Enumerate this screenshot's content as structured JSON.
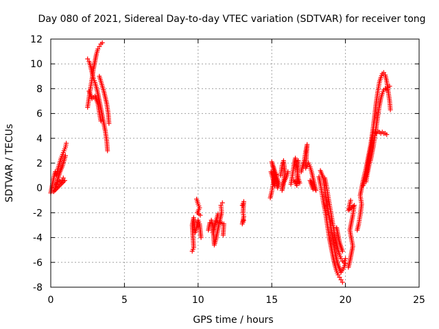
{
  "chart_data": {
    "type": "scatter",
    "title": "Day 080 of 2021, Sidereal Day-to-day VTEC variation (SDTVAR) for receiver tong",
    "xlabel": "GPS time / hours",
    "ylabel": "SDTVAR / TECUs",
    "xlim": [
      0,
      25
    ],
    "ylim": [
      -8,
      12
    ],
    "xticks": [
      "0",
      "5",
      "10",
      "15",
      "20",
      "25"
    ],
    "yticks": [
      "-8",
      "-6",
      "-4",
      "-2",
      "0",
      "2",
      "4",
      "6",
      "8",
      "10",
      "12"
    ],
    "grid": true,
    "marker": "plus",
    "color": "#ff0000",
    "series": [
      {
        "name": "SDTVAR",
        "segments": [
          [
            [
              0.0,
              -0.4
            ],
            [
              0.1,
              0.2
            ],
            [
              0.2,
              0.8
            ],
            [
              0.3,
              1.3
            ],
            [
              0.4,
              1.0
            ],
            [
              0.5,
              1.6
            ],
            [
              0.6,
              2.0
            ],
            [
              0.7,
              2.4
            ],
            [
              0.8,
              2.7
            ],
            [
              0.9,
              3.0
            ],
            [
              1.0,
              3.3
            ],
            [
              1.05,
              3.6
            ],
            [
              0.4,
              0.3
            ],
            [
              0.5,
              0.6
            ],
            [
              0.7,
              0.5
            ],
            [
              0.85,
              0.8
            ],
            [
              0.95,
              0.6
            ],
            [
              0.2,
              -0.3
            ],
            [
              0.3,
              0.0
            ],
            [
              0.6,
              1.2
            ],
            [
              0.8,
              1.8
            ],
            [
              1.0,
              2.6
            ]
          ],
          [
            [
              2.5,
              6.5
            ],
            [
              2.6,
              7.3
            ],
            [
              2.7,
              8.1
            ],
            [
              2.8,
              8.8
            ],
            [
              2.9,
              9.6
            ],
            [
              3.0,
              10.2
            ],
            [
              3.1,
              10.8
            ],
            [
              3.2,
              11.2
            ],
            [
              3.3,
              11.4
            ],
            [
              3.4,
              11.6
            ],
            [
              3.5,
              11.7
            ]
          ],
          [
            [
              2.5,
              10.4
            ],
            [
              2.6,
              10.2
            ],
            [
              2.7,
              9.8
            ],
            [
              2.8,
              9.3
            ],
            [
              2.9,
              8.8
            ],
            [
              3.0,
              8.5
            ],
            [
              3.1,
              8.1
            ],
            [
              3.2,
              7.6
            ],
            [
              3.3,
              7.0
            ],
            [
              3.4,
              6.4
            ],
            [
              3.5,
              5.8
            ],
            [
              3.6,
              5.2
            ],
            [
              3.7,
              4.6
            ],
            [
              3.8,
              3.8
            ],
            [
              3.85,
              3.0
            ]
          ],
          [
            [
              3.3,
              9.0
            ],
            [
              3.4,
              8.6
            ],
            [
              3.5,
              8.2
            ],
            [
              3.6,
              7.8
            ],
            [
              3.7,
              7.3
            ],
            [
              3.8,
              6.8
            ],
            [
              3.9,
              6.0
            ],
            [
              3.95,
              5.2
            ],
            [
              2.6,
              7.8
            ],
            [
              2.8,
              7.2
            ],
            [
              3.0,
              7.4
            ],
            [
              3.2,
              6.8
            ],
            [
              3.4,
              5.4
            ]
          ],
          [
            [
              9.6,
              -5.1
            ],
            [
              9.7,
              -4.8
            ],
            [
              9.6,
              -3.0
            ],
            [
              9.7,
              -2.4
            ],
            [
              9.8,
              -3.6
            ],
            [
              9.9,
              -3.2
            ],
            [
              10.0,
              -2.6
            ],
            [
              10.1,
              -2.9
            ],
            [
              10.2,
              -4.0
            ],
            [
              9.9,
              -0.9
            ],
            [
              10.0,
              -1.3
            ],
            [
              10.1,
              -1.6
            ],
            [
              9.95,
              -2.0
            ],
            [
              10.15,
              -2.2
            ]
          ],
          [
            [
              10.7,
              -3.4
            ],
            [
              10.8,
              -2.8
            ],
            [
              10.9,
              -2.6
            ],
            [
              11.0,
              -3.0
            ],
            [
              11.1,
              -4.6
            ],
            [
              11.2,
              -4.2
            ],
            [
              11.3,
              -3.6
            ],
            [
              11.4,
              -3.0
            ],
            [
              11.5,
              -2.5
            ],
            [
              11.6,
              -2.0
            ],
            [
              11.55,
              -1.4
            ],
            [
              11.65,
              -1.2
            ],
            [
              11.7,
              -3.8
            ],
            [
              11.75,
              -2.9
            ],
            [
              11.2,
              -2.7
            ],
            [
              11.0,
              -3.6
            ],
            [
              11.35,
              -2.1
            ]
          ],
          [
            [
              13.0,
              -1.4
            ],
            [
              13.1,
              -1.1
            ],
            [
              13.05,
              -2.0
            ],
            [
              13.1,
              -2.3
            ],
            [
              13.0,
              -2.9
            ],
            [
              13.1,
              -2.6
            ]
          ],
          [
            [
              14.9,
              -0.8
            ],
            [
              15.0,
              -0.3
            ],
            [
              15.1,
              0.4
            ],
            [
              15.2,
              1.0
            ],
            [
              15.3,
              0.6
            ],
            [
              15.4,
              0.0
            ],
            [
              15.5,
              0.3
            ],
            [
              15.0,
              2.1
            ],
            [
              15.1,
              1.6
            ],
            [
              15.2,
              0.2
            ],
            [
              14.95,
              1.3
            ],
            [
              15.3,
              1.1
            ]
          ],
          [
            [
              15.6,
              1.0
            ],
            [
              15.7,
              1.8
            ],
            [
              15.8,
              2.2
            ],
            [
              15.9,
              1.2
            ],
            [
              15.7,
              -0.2
            ],
            [
              15.8,
              0.4
            ],
            [
              16.0,
              0.9
            ],
            [
              16.1,
              1.3
            ]
          ],
          [
            [
              16.3,
              0.3
            ],
            [
              16.4,
              1.0
            ],
            [
              16.5,
              1.8
            ],
            [
              16.6,
              2.4
            ],
            [
              16.7,
              1.6
            ],
            [
              16.8,
              0.8
            ],
            [
              16.9,
              0.4
            ],
            [
              16.5,
              0.6
            ],
            [
              16.7,
              0.2
            ],
            [
              16.8,
              2.2
            ]
          ],
          [
            [
              17.0,
              1.3
            ],
            [
              17.1,
              1.8
            ],
            [
              17.2,
              2.2
            ],
            [
              17.3,
              2.9
            ],
            [
              17.4,
              3.5
            ],
            [
              17.3,
              1.6
            ],
            [
              17.5,
              2.0
            ],
            [
              17.6,
              1.7
            ],
            [
              17.7,
              1.3
            ],
            [
              17.8,
              0.8
            ],
            [
              17.9,
              0.3
            ],
            [
              18.0,
              -0.2
            ],
            [
              17.6,
              0.6
            ],
            [
              17.8,
              -0.1
            ]
          ],
          [
            [
              18.2,
              0.9
            ],
            [
              18.3,
              0.3
            ],
            [
              18.4,
              -0.4
            ],
            [
              18.5,
              -1.1
            ],
            [
              18.6,
              -1.7
            ],
            [
              18.7,
              -2.4
            ],
            [
              18.8,
              -3.2
            ],
            [
              18.9,
              -4.0
            ],
            [
              19.0,
              -4.6
            ],
            [
              19.1,
              -5.2
            ],
            [
              19.2,
              -5.8
            ],
            [
              19.3,
              -6.3
            ],
            [
              19.4,
              -6.7
            ],
            [
              19.5,
              -7.0
            ],
            [
              19.6,
              -7.2
            ],
            [
              19.7,
              -7.4
            ],
            [
              19.8,
              -7.6
            ]
          ],
          [
            [
              18.6,
              0.8
            ],
            [
              18.7,
              0.2
            ],
            [
              18.8,
              -0.5
            ],
            [
              18.9,
              -1.2
            ],
            [
              19.0,
              -1.9
            ],
            [
              19.1,
              -2.6
            ],
            [
              19.2,
              -3.3
            ],
            [
              19.3,
              -4.0
            ],
            [
              19.4,
              -4.5
            ],
            [
              19.5,
              -5.0
            ],
            [
              19.6,
              -5.4
            ],
            [
              19.7,
              -5.7
            ],
            [
              19.8,
              -5.9
            ],
            [
              19.9,
              -6.0
            ],
            [
              20.0,
              -5.7
            ],
            [
              19.4,
              -3.2
            ],
            [
              19.6,
              -4.4
            ],
            [
              19.8,
              -5.1
            ]
          ],
          [
            [
              18.3,
              1.4
            ],
            [
              18.5,
              0.8
            ],
            [
              18.7,
              -1.0
            ],
            [
              18.9,
              -2.3
            ],
            [
              19.1,
              -3.8
            ],
            [
              19.3,
              -5.2
            ],
            [
              19.5,
              -6.2
            ],
            [
              19.7,
              -6.8
            ],
            [
              19.9,
              -6.4
            ],
            [
              20.0,
              -6.1
            ]
          ],
          [
            [
              20.2,
              -6.4
            ],
            [
              20.3,
              -5.9
            ],
            [
              20.4,
              -5.3
            ],
            [
              20.5,
              -4.7
            ],
            [
              20.3,
              -3.4
            ],
            [
              20.4,
              -2.8
            ],
            [
              20.5,
              -2.2
            ],
            [
              20.6,
              -1.4
            ],
            [
              20.2,
              -1.8
            ],
            [
              20.35,
              -1.0
            ]
          ],
          [
            [
              20.8,
              -3.4
            ],
            [
              20.9,
              -2.9
            ],
            [
              21.0,
              -2.2
            ],
            [
              21.1,
              -1.3
            ],
            [
              21.0,
              -0.6
            ],
            [
              21.1,
              0.0
            ],
            [
              21.2,
              0.6
            ],
            [
              21.3,
              1.1
            ],
            [
              21.4,
              1.6
            ],
            [
              21.5,
              2.2
            ],
            [
              21.6,
              2.8
            ],
            [
              21.7,
              3.4
            ],
            [
              21.8,
              4.2
            ],
            [
              21.9,
              5.0
            ],
            [
              22.0,
              6.0
            ],
            [
              22.1,
              7.0
            ],
            [
              22.2,
              7.8
            ],
            [
              22.3,
              8.5
            ],
            [
              22.4,
              8.9
            ],
            [
              22.5,
              9.2
            ],
            [
              22.6,
              9.3
            ],
            [
              22.7,
              9.1
            ],
            [
              22.8,
              8.6
            ],
            [
              22.9,
              7.8
            ],
            [
              23.0,
              7.0
            ],
            [
              23.05,
              6.3
            ]
          ],
          [
            [
              21.4,
              0.5
            ],
            [
              21.5,
              1.2
            ],
            [
              21.6,
              1.8
            ],
            [
              21.7,
              2.2
            ],
            [
              21.8,
              2.8
            ],
            [
              21.9,
              3.4
            ],
            [
              22.0,
              4.2
            ],
            [
              22.1,
              5.0
            ],
            [
              22.2,
              5.8
            ],
            [
              22.3,
              6.6
            ],
            [
              22.4,
              7.2
            ],
            [
              22.5,
              7.6
            ],
            [
              22.6,
              7.9
            ],
            [
              22.7,
              8.0
            ],
            [
              22.8,
              7.9
            ],
            [
              22.9,
              8.1
            ],
            [
              23.0,
              8.2
            ]
          ],
          [
            [
              21.2,
              0.2
            ],
            [
              21.4,
              1.0
            ],
            [
              21.6,
              2.4
            ],
            [
              21.8,
              3.6
            ],
            [
              21.9,
              4.6
            ],
            [
              22.0,
              4.5
            ],
            [
              22.1,
              4.4
            ],
            [
              22.2,
              4.6
            ],
            [
              22.3,
              4.5
            ],
            [
              22.4,
              4.4
            ],
            [
              22.5,
              4.5
            ],
            [
              22.6,
              4.4
            ],
            [
              22.7,
              4.4
            ],
            [
              22.8,
              4.3
            ]
          ]
        ]
      }
    ]
  }
}
